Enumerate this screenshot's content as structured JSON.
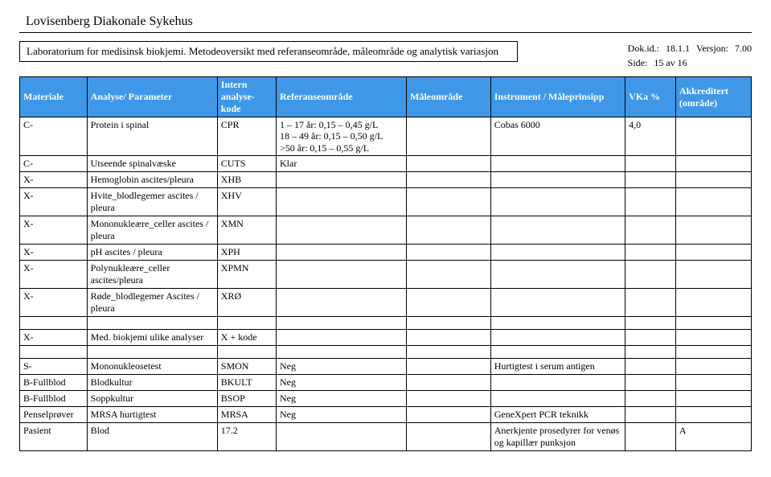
{
  "header": {
    "hospital": "Lovisenberg Diakonale Sykehus",
    "doc_title": "Laboratorium for medisinsk biokjemi. Metodeoversikt med referanseområde, måleområde og analytisk variasjon",
    "dokid_label": "Dok.id.:",
    "dokid_value": "18.1.1",
    "version_label": "Versjon:",
    "version_value": "7.00",
    "side_label": "Side:",
    "side_value": "15 av 16"
  },
  "columns": {
    "materiale": "Materiale",
    "parameter": "Analyse/ Parameter",
    "kode": "Intern analyse-kode",
    "ref": "Referanseområde",
    "male": "Måleområde",
    "instrument": "Instrument / Måleprinsipp",
    "vka": "VKa %",
    "akkreditert": "Akkreditert (område)"
  },
  "rows": [
    {
      "materiale": "C-",
      "parameter": "Protein i spinal",
      "kode": "CPR",
      "ref": "1 – 17 år: 0,15 – 0,45 g/L\n18 – 49 år: 0,15 – 0,50 g/L\n>50 år: 0,15 – 0,55 g/L",
      "male": "",
      "instrument": "Cobas 6000",
      "vka": "4,0",
      "akk": ""
    },
    {
      "materiale": "C-",
      "parameter": "Utseende spinalvæske",
      "kode": "CUTS",
      "ref": "Klar",
      "male": "",
      "instrument": "",
      "vka": "",
      "akk": ""
    },
    {
      "materiale": "X-",
      "parameter": "Hemoglobin ascites/pleura",
      "kode": "XHB",
      "ref": "",
      "male": "",
      "instrument": "",
      "vka": "",
      "akk": ""
    },
    {
      "materiale": "X-",
      "parameter": "Hvite_blodlegemer ascites / pleura",
      "kode": "XHV",
      "ref": "",
      "male": "",
      "instrument": "",
      "vka": "",
      "akk": ""
    },
    {
      "materiale": "X-",
      "parameter": "Mononukleære_celler ascites / pleura",
      "kode": "XMN",
      "ref": "",
      "male": "",
      "instrument": "",
      "vka": "",
      "akk": ""
    },
    {
      "materiale": "X-",
      "parameter": "pH  ascites / pleura",
      "kode": "XPH",
      "ref": "",
      "male": "",
      "instrument": "",
      "vka": "",
      "akk": ""
    },
    {
      "materiale": "X-",
      "parameter": "Polynukleære_celler ascites/pleura",
      "kode": "XPMN",
      "ref": "",
      "male": "",
      "instrument": "",
      "vka": "",
      "akk": ""
    },
    {
      "materiale": "X-",
      "parameter": "Røde_blodlegemer Ascites / pleura",
      "kode": "XRØ",
      "ref": "",
      "male": "",
      "instrument": "",
      "vka": "",
      "akk": ""
    }
  ],
  "row_med": {
    "materiale": "X-",
    "parameter": "Med. biokjemi ulike analyser",
    "kode": "X + kode",
    "ref": "",
    "male": "",
    "instrument": "",
    "vka": "",
    "akk": ""
  },
  "rows2": [
    {
      "materiale": "S-",
      "parameter": "Mononukleosetest",
      "kode": "SMON",
      "ref": "Neg",
      "male": "",
      "instrument": "Hurtigtest i serum antigen",
      "vka": "",
      "akk": ""
    },
    {
      "materiale": "B-Fullblod",
      "parameter": "Blodkultur",
      "kode": "BKULT",
      "ref": "Neg",
      "male": "",
      "instrument": "",
      "vka": "",
      "akk": ""
    },
    {
      "materiale": "B-Fullblod",
      "parameter": "Soppkultur",
      "kode": "BSOP",
      "ref": "Neg",
      "male": "",
      "instrument": "",
      "vka": "",
      "akk": ""
    },
    {
      "materiale": "Penselprøver",
      "parameter": "MRSA hurtigtest",
      "kode": "MRSA",
      "ref": "Neg",
      "male": "",
      "instrument": "GeneXpert PCR teknikk",
      "vka": "",
      "akk": ""
    },
    {
      "materiale": "Pasient",
      "parameter": "Blod",
      "kode": "17.2",
      "ref": "",
      "male": "",
      "instrument": "Anerkjente prosedyrer for venøs og kapillær punksjon",
      "vka": "",
      "akk": "A"
    }
  ],
  "colors": {
    "header_bg": "#3f97e8",
    "header_fg": "#ffffff",
    "border": "#000000",
    "body_bg": "#ffffff"
  },
  "fonts": {
    "body_family": "Times New Roman",
    "body_size_pt": 10,
    "title_size_pt": 12
  }
}
